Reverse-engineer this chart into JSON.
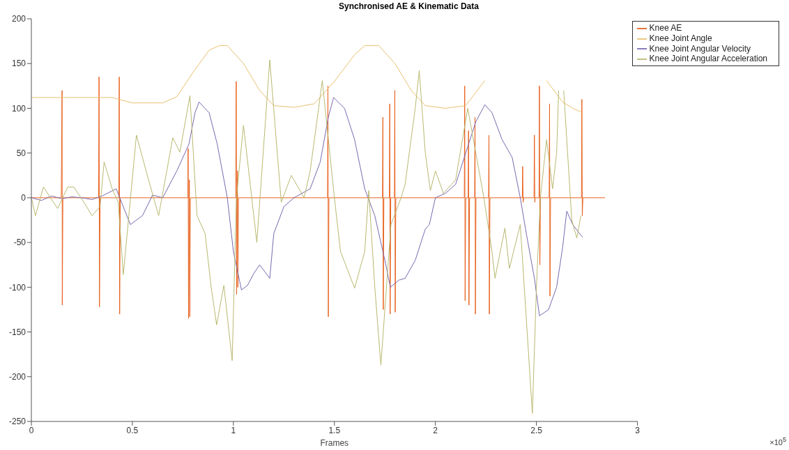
{
  "chart_data": {
    "type": "line",
    "title": "Synchronised AE & Kinematic Data",
    "xlabel": "Frames",
    "xlim": [
      0,
      3
    ],
    "xticks": [
      0,
      0.5,
      1,
      1.5,
      2,
      2.5,
      3
    ],
    "ylim": [
      -250,
      200
    ],
    "yticks": [
      -250,
      -200,
      -150,
      -100,
      -50,
      0,
      50,
      100,
      150,
      200
    ],
    "grid": false,
    "legend": "top right",
    "marker": "none",
    "line_style": "solid",
    "annotations": [
      "×10$^{5}$"
    ],
    "series": [
      {
        "name": "Knee AE",
        "color": "#e8601c",
        "x": [
          0,
          0.148,
          0.152,
          0.153,
          0.156,
          0.333,
          0.335,
          0.337,
          0.34,
          0.433,
          0.435,
          0.437,
          0.44,
          0.775,
          0.776,
          0.778,
          0.782,
          0.784,
          0.787,
          1.012,
          1.014,
          1.016,
          1.02,
          1.022,
          1.025,
          1.466,
          1.468,
          1.47,
          1.473,
          1.738,
          1.74,
          1.742,
          1.745,
          1.772,
          1.774,
          1.776,
          1.779,
          1.797,
          1.799,
          1.801,
          1.804,
          2.143,
          2.145,
          2.147,
          2.15,
          2.162,
          2.164,
          2.166,
          2.169,
          2.194,
          2.196,
          2.198,
          2.201,
          2.263,
          2.265,
          2.267,
          2.27,
          2.43,
          2.432,
          2.434,
          2.437,
          2.488,
          2.49,
          2.492,
          2.494,
          2.513,
          2.515,
          2.517,
          2.52,
          2.563,
          2.565,
          2.567,
          2.57,
          2.723,
          2.725,
          2.727,
          2.73,
          2.84
        ],
        "values": [
          0,
          0,
          120,
          -120,
          0,
          0,
          135,
          -122,
          0,
          0,
          135,
          -130,
          0,
          0,
          55,
          -135,
          20,
          -133,
          0,
          0,
          130,
          -108,
          30,
          -100,
          0,
          0,
          125,
          -133,
          0,
          0,
          90,
          -125,
          0,
          0,
          105,
          -130,
          0,
          0,
          120,
          -128,
          0,
          0,
          125,
          -115,
          0,
          0,
          75,
          -120,
          0,
          0,
          90,
          -130,
          0,
          0,
          70,
          -130,
          0,
          0,
          35,
          -5,
          0,
          0,
          70,
          -5,
          0,
          0,
          125,
          -75,
          0,
          0,
          105,
          -110,
          0,
          0,
          110,
          -20,
          0,
          0
        ]
      },
      {
        "name": "Knee Joint Angle",
        "color": "#e8c070",
        "x": [
          0,
          0.2,
          0.4,
          0.5,
          0.65,
          0.72,
          0.8,
          0.88,
          0.93,
          0.97,
          1.05,
          1.13,
          1.2,
          1.3,
          1.4,
          1.5,
          1.6,
          1.65,
          1.72,
          1.8,
          1.88,
          1.95,
          2.05,
          2.15,
          2.245,
          2.26,
          2.55,
          2.63,
          2.68,
          2.72,
          2.73
        ],
        "values": [
          112,
          112,
          112,
          106,
          106,
          113,
          140,
          165,
          170,
          170,
          150,
          120,
          103,
          101,
          105,
          130,
          160,
          170,
          170,
          150,
          120,
          103,
          100,
          103,
          131,
          null,
          131,
          107,
          100,
          96,
          95
        ]
      },
      {
        "name": "Knee Joint Angular Velocity",
        "color": "#7a68b0",
        "x": [
          0,
          0.05,
          0.1,
          0.15,
          0.2,
          0.25,
          0.3,
          0.35,
          0.42,
          0.49,
          0.55,
          0.6,
          0.65,
          0.72,
          0.78,
          0.81,
          0.83,
          0.88,
          0.92,
          0.97,
          1.0,
          1.04,
          1.07,
          1.1,
          1.13,
          1.18,
          1.2,
          1.25,
          1.3,
          1.38,
          1.43,
          1.47,
          1.496,
          1.55,
          1.6,
          1.65,
          1.7,
          1.75,
          1.777,
          1.82,
          1.85,
          1.9,
          1.95,
          1.97,
          2.0,
          2.05,
          2.1,
          2.15,
          2.2,
          2.245,
          2.28,
          2.33,
          2.38,
          2.42,
          2.45,
          2.49,
          2.515,
          2.56,
          2.6,
          2.63,
          2.65,
          2.68,
          2.72,
          2.73
        ],
        "values": [
          0,
          -3,
          2,
          -1,
          1,
          0,
          -2,
          2,
          10,
          -30,
          -20,
          3,
          0,
          30,
          60,
          95,
          107,
          95,
          60,
          0,
          -60,
          -103,
          -98,
          -85,
          -75,
          -90,
          -40,
          -10,
          0,
          10,
          40,
          90,
          112,
          100,
          65,
          10,
          -20,
          -70,
          -100,
          -92,
          -90,
          -70,
          -35,
          -30,
          0,
          5,
          15,
          50,
          85,
          104,
          95,
          65,
          45,
          0,
          -40,
          -90,
          -132,
          -125,
          -100,
          -55,
          -15,
          -30,
          -42,
          -44
        ]
      },
      {
        "name": "Knee Joint Angular Acceleration",
        "color": "#b8b870",
        "x": [
          0,
          0.02,
          0.06,
          0.1,
          0.13,
          0.18,
          0.21,
          0.26,
          0.3,
          0.34,
          0.36,
          0.4,
          0.43,
          0.455,
          0.52,
          0.58,
          0.63,
          0.7,
          0.735,
          0.785,
          0.82,
          0.86,
          0.89,
          0.917,
          0.953,
          0.994,
          1.015,
          1.05,
          1.116,
          1.18,
          1.237,
          1.287,
          1.35,
          1.38,
          1.41,
          1.44,
          1.5,
          1.53,
          1.6,
          1.65,
          1.67,
          1.7,
          1.73,
          1.78,
          1.83,
          1.85,
          1.9,
          1.92,
          1.95,
          1.975,
          2.0,
          2.04,
          2.1,
          2.13,
          2.16,
          2.2,
          2.24,
          2.28,
          2.295,
          2.344,
          2.366,
          2.42,
          2.48,
          2.5,
          2.52,
          2.55,
          2.58,
          2.6,
          2.61,
          2.62,
          2.635,
          2.675,
          2.7,
          2.72
        ],
        "values": [
          0,
          -20,
          12,
          -2,
          -12,
          12,
          12,
          -5,
          -20,
          -10,
          40,
          10,
          -5,
          -86,
          70,
          20,
          -20,
          67,
          51,
          114,
          -20,
          -40,
          -100,
          -142,
          -98,
          -182,
          0,
          81,
          -50,
          154,
          -5,
          25,
          0,
          30,
          80,
          131,
          0,
          -60,
          -101,
          -60,
          8,
          -100,
          -187,
          -30,
          0,
          15,
          100,
          142,
          50,
          8,
          30,
          5,
          20,
          60,
          100,
          50,
          0,
          -60,
          -90,
          -34,
          -79,
          -30,
          -241,
          -100,
          0,
          65,
          10,
          50,
          120,
          null,
          120,
          -25,
          -45,
          -20
        ]
      }
    ]
  }
}
